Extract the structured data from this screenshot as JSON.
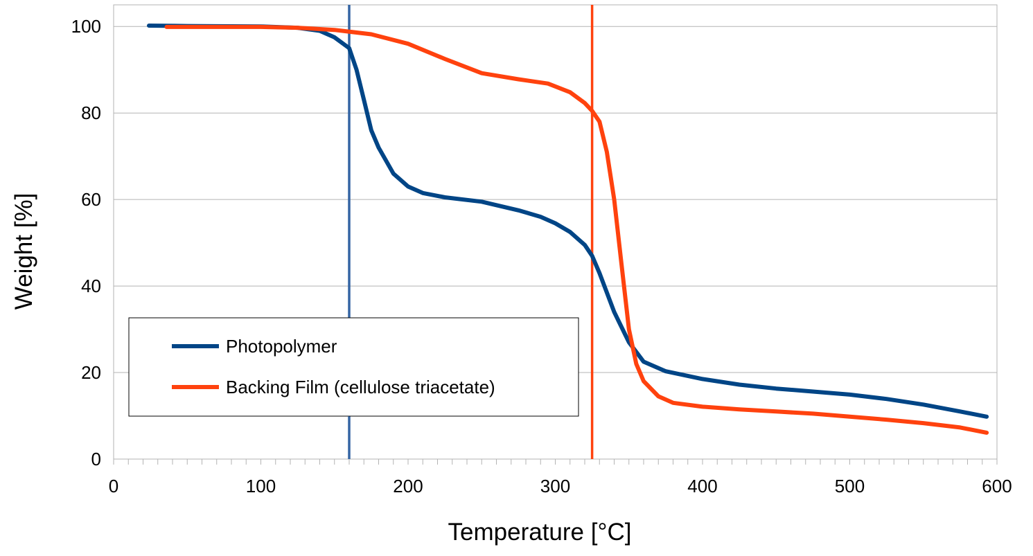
{
  "chart_data": {
    "type": "line",
    "title": "",
    "xlabel": "Temperature [°C]",
    "ylabel": "Weight [%]",
    "xlim": [
      0,
      600
    ],
    "ylim": [
      0,
      105
    ],
    "x_ticks": [
      0,
      100,
      200,
      300,
      400,
      500,
      600
    ],
    "y_ticks": [
      0,
      20,
      40,
      60,
      80,
      100
    ],
    "grid": "horizontal",
    "legend_position": "lower-left",
    "series": [
      {
        "name": "Photopolymer",
        "color": "#004586",
        "points": [
          [
            24,
            100.2
          ],
          [
            50,
            100.1
          ],
          [
            100,
            100.0
          ],
          [
            125,
            99.7
          ],
          [
            140,
            99.0
          ],
          [
            150,
            97.5
          ],
          [
            160,
            95.0
          ],
          [
            165,
            90.0
          ],
          [
            170,
            83.0
          ],
          [
            175,
            76.0
          ],
          [
            180,
            72.0
          ],
          [
            190,
            66.0
          ],
          [
            200,
            63.0
          ],
          [
            210,
            61.5
          ],
          [
            225,
            60.5
          ],
          [
            250,
            59.5
          ],
          [
            275,
            57.5
          ],
          [
            290,
            56.0
          ],
          [
            300,
            54.5
          ],
          [
            310,
            52.5
          ],
          [
            320,
            49.5
          ],
          [
            325,
            47.0
          ],
          [
            330,
            43.0
          ],
          [
            340,
            34.0
          ],
          [
            350,
            27.0
          ],
          [
            360,
            22.5
          ],
          [
            375,
            20.3
          ],
          [
            400,
            18.5
          ],
          [
            425,
            17.2
          ],
          [
            450,
            16.3
          ],
          [
            475,
            15.6
          ],
          [
            500,
            14.9
          ],
          [
            525,
            13.9
          ],
          [
            550,
            12.6
          ],
          [
            575,
            11.0
          ],
          [
            593,
            9.8
          ]
        ]
      },
      {
        "name": "Backing Film (cellulose triacetate)",
        "color": "#ff420e",
        "points": [
          [
            36,
            99.9
          ],
          [
            100,
            99.9
          ],
          [
            125,
            99.7
          ],
          [
            150,
            99.2
          ],
          [
            175,
            98.2
          ],
          [
            200,
            96.0
          ],
          [
            225,
            92.5
          ],
          [
            250,
            89.2
          ],
          [
            275,
            87.8
          ],
          [
            295,
            86.8
          ],
          [
            310,
            84.8
          ],
          [
            320,
            82.3
          ],
          [
            325,
            80.5
          ],
          [
            330,
            78.0
          ],
          [
            335,
            71.0
          ],
          [
            340,
            60.0
          ],
          [
            345,
            45.0
          ],
          [
            350,
            30.0
          ],
          [
            355,
            22.0
          ],
          [
            360,
            18.0
          ],
          [
            370,
            14.5
          ],
          [
            380,
            13.0
          ],
          [
            400,
            12.1
          ],
          [
            425,
            11.5
          ],
          [
            450,
            11.0
          ],
          [
            475,
            10.5
          ],
          [
            500,
            9.8
          ],
          [
            525,
            9.1
          ],
          [
            550,
            8.3
          ],
          [
            575,
            7.3
          ],
          [
            593,
            6.1
          ]
        ]
      }
    ],
    "reference_lines": [
      {
        "orientation": "vertical",
        "x": 160,
        "color": "#3465a4"
      },
      {
        "orientation": "vertical",
        "x": 325,
        "color": "#ff420e"
      }
    ]
  }
}
